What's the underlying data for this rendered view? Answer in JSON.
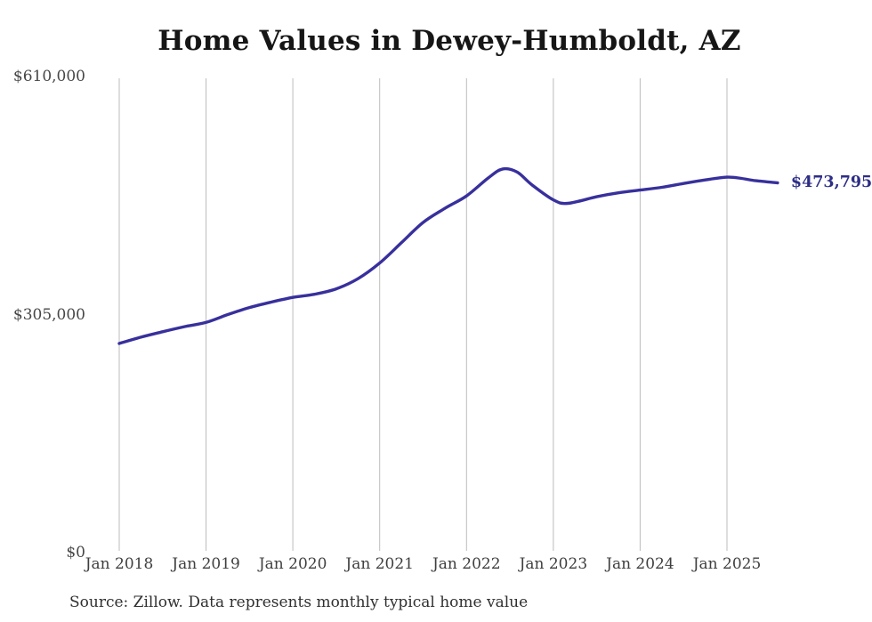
{
  "page": {
    "title": "Home Values in Dewey-Humboldt, AZ",
    "source_note": "Source: Zillow. Data represents monthly typical home value",
    "end_value_label": "$473,795"
  },
  "chart_data": {
    "type": "line",
    "title": "Home Values in Dewey-Humboldt, AZ",
    "series_name": "Typical home value (monthly)",
    "unit": "USD",
    "ylim": [
      0,
      610000
    ],
    "grid": "vertical",
    "legend": "none",
    "x": [
      "2018-01",
      "2018-04",
      "2018-07",
      "2018-10",
      "2019-01",
      "2019-04",
      "2019-07",
      "2019-10",
      "2020-01",
      "2020-04",
      "2020-07",
      "2020-10",
      "2021-01",
      "2021-04",
      "2021-07",
      "2021-10",
      "2022-01",
      "2022-04",
      "2022-06",
      "2022-08",
      "2022-10",
      "2023-01",
      "2023-03",
      "2023-07",
      "2023-10",
      "2024-01",
      "2024-04",
      "2024-07",
      "2024-10",
      "2025-01",
      "2025-03",
      "2025-05",
      "2025-08"
    ],
    "values": [
      268000,
      276000,
      283000,
      289500,
      295000,
      305000,
      314000,
      321000,
      327000,
      331000,
      338000,
      351000,
      371000,
      397000,
      423000,
      441000,
      457000,
      480000,
      491500,
      487500,
      471500,
      452000,
      447500,
      456000,
      461000,
      464500,
      468000,
      473000,
      477500,
      481000,
      479500,
      476500,
      473795
    ],
    "y_ticks": [
      {
        "label": "$610,000",
        "value": 610000
      },
      {
        "label": "$305,000",
        "value": 305000
      },
      {
        "label": "$0",
        "value": 0
      }
    ],
    "x_ticks": [
      {
        "label": "Jan 2018",
        "month": "2018-01"
      },
      {
        "label": "Jan 2019",
        "month": "2019-01"
      },
      {
        "label": "Jan 2020",
        "month": "2020-01"
      },
      {
        "label": "Jan 2021",
        "month": "2021-01"
      },
      {
        "label": "Jan 2022",
        "month": "2022-01"
      },
      {
        "label": "Jan 2023",
        "month": "2023-01"
      },
      {
        "label": "Jan 2024",
        "month": "2024-01"
      },
      {
        "label": "Jan 2025",
        "month": "2025-01"
      }
    ],
    "latest": {
      "label": "$473,795",
      "value": 473795,
      "month": "2025-08"
    },
    "colors": {
      "line": "#38309c",
      "latest_label": "#2d2d87",
      "grid": "#bcbcbc",
      "title": "#161616",
      "axis_text": "#474747",
      "source_text": "#303030",
      "background": "#ffffff"
    }
  }
}
